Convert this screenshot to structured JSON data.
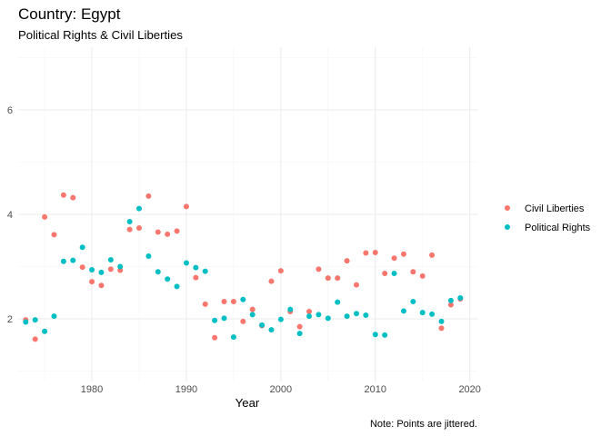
{
  "chart_data": {
    "type": "scatter",
    "title": "Country: Egypt",
    "subtitle": "Political Rights & Civil Liberties",
    "xlabel": "Year",
    "ylabel": "",
    "caption": "Note: Points are jittered.",
    "xlim": [
      1972.2,
      2020.8
    ],
    "ylim": [
      0.8,
      7.2
    ],
    "x_ticks": [
      1980,
      1990,
      2000,
      2010,
      2020
    ],
    "y_ticks": [
      2,
      4,
      6
    ],
    "grid": true,
    "legend_position": "right",
    "series": [
      {
        "name": "Civil Liberties",
        "color": "#F8766D",
        "points": [
          [
            1973,
            1.98
          ],
          [
            1974,
            1.61
          ],
          [
            1975,
            3.95
          ],
          [
            1976,
            3.61
          ],
          [
            1977,
            4.37
          ],
          [
            1978,
            4.32
          ],
          [
            1979,
            2.99
          ],
          [
            1980,
            2.71
          ],
          [
            1981,
            2.64
          ],
          [
            1982,
            2.95
          ],
          [
            1983,
            2.93
          ],
          [
            1984,
            3.71
          ],
          [
            1985,
            3.74
          ],
          [
            1986,
            4.35
          ],
          [
            1987,
            3.66
          ],
          [
            1988,
            3.62
          ],
          [
            1989,
            3.68
          ],
          [
            1990,
            4.15
          ],
          [
            1991,
            2.79
          ],
          [
            1992,
            2.28
          ],
          [
            1993,
            1.64
          ],
          [
            1994,
            2.33
          ],
          [
            1995,
            2.33
          ],
          [
            1996,
            1.95
          ],
          [
            1997,
            2.18
          ],
          [
            1998,
            1.87
          ],
          [
            1999,
            2.72
          ],
          [
            2000,
            2.92
          ],
          [
            2001,
            2.14
          ],
          [
            2002,
            1.85
          ],
          [
            2003,
            2.14
          ],
          [
            2004,
            2.95
          ],
          [
            2005,
            2.78
          ],
          [
            2006,
            2.78
          ],
          [
            2007,
            3.11
          ],
          [
            2008,
            2.65
          ],
          [
            2009,
            3.26
          ],
          [
            2010,
            3.27
          ],
          [
            2011,
            2.87
          ],
          [
            2012,
            3.16
          ],
          [
            2013,
            3.24
          ],
          [
            2014,
            2.9
          ],
          [
            2015,
            2.82
          ],
          [
            2016,
            3.22
          ],
          [
            2017,
            1.82
          ],
          [
            2018,
            2.27
          ],
          [
            2019,
            2.38
          ]
        ]
      },
      {
        "name": "Political Rights",
        "color": "#00BFC4",
        "points": [
          [
            1973,
            1.94
          ],
          [
            1974,
            1.98
          ],
          [
            1975,
            1.76
          ],
          [
            1976,
            2.05
          ],
          [
            1977,
            3.1
          ],
          [
            1978,
            3.12
          ],
          [
            1979,
            3.37
          ],
          [
            1980,
            2.94
          ],
          [
            1981,
            2.89
          ],
          [
            1982,
            3.13
          ],
          [
            1983,
            3.0
          ],
          [
            1984,
            3.86
          ],
          [
            1985,
            4.11
          ],
          [
            1986,
            3.2
          ],
          [
            1987,
            2.9
          ],
          [
            1988,
            2.76
          ],
          [
            1989,
            2.62
          ],
          [
            1990,
            3.07
          ],
          [
            1991,
            2.98
          ],
          [
            1992,
            2.91
          ],
          [
            1993,
            1.97
          ],
          [
            1994,
            2.01
          ],
          [
            1995,
            1.65
          ],
          [
            1996,
            2.37
          ],
          [
            1997,
            2.08
          ],
          [
            1998,
            1.88
          ],
          [
            1999,
            1.79
          ],
          [
            2000,
            1.99
          ],
          [
            2001,
            2.18
          ],
          [
            2002,
            1.72
          ],
          [
            2003,
            2.05
          ],
          [
            2004,
            2.08
          ],
          [
            2005,
            2.01
          ],
          [
            2006,
            2.32
          ],
          [
            2007,
            2.05
          ],
          [
            2008,
            2.1
          ],
          [
            2009,
            2.07
          ],
          [
            2010,
            1.7
          ],
          [
            2011,
            1.69
          ],
          [
            2012,
            2.87
          ],
          [
            2013,
            2.15
          ],
          [
            2014,
            2.33
          ],
          [
            2015,
            2.12
          ],
          [
            2016,
            2.09
          ],
          [
            2017,
            1.95
          ],
          [
            2018,
            2.35
          ],
          [
            2019,
            2.4
          ]
        ]
      }
    ]
  }
}
